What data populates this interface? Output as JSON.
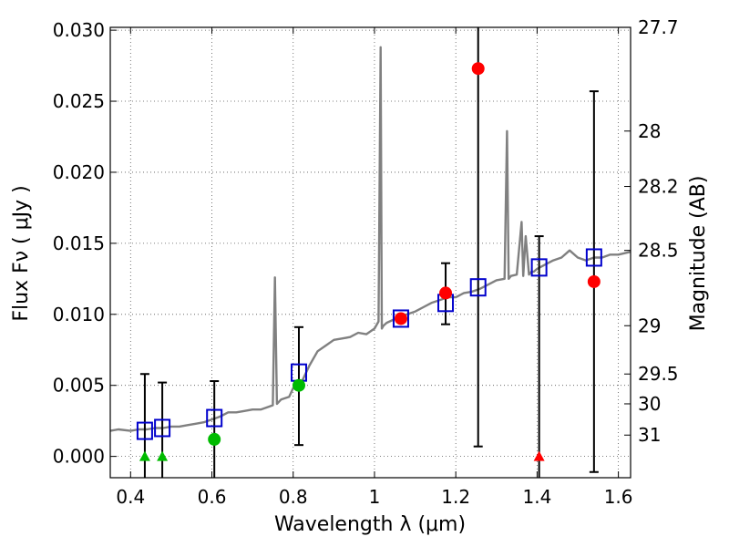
{
  "chart_data": {
    "type": "scatter",
    "xlabel": "Wavelength  λ (μm)",
    "ylabel": "Flux  Fν  ( μJy )",
    "y2label": "Magnitude (AB)",
    "xlim": [
      0.35,
      1.63
    ],
    "ylim": [
      -0.0015,
      0.0302
    ],
    "xticks": [
      {
        "value": 0.4,
        "label": "0.4"
      },
      {
        "value": 0.6,
        "label": "0.6"
      },
      {
        "value": 0.8,
        "label": "0.8"
      },
      {
        "value": 1.0,
        "label": "1"
      },
      {
        "value": 1.2,
        "label": "1.2"
      },
      {
        "value": 1.4,
        "label": "1.4"
      },
      {
        "value": 1.6,
        "label": "1.6"
      }
    ],
    "yticks": [
      {
        "value": 0.0,
        "label": "0.000"
      },
      {
        "value": 0.005,
        "label": "0.005"
      },
      {
        "value": 0.01,
        "label": "0.010"
      },
      {
        "value": 0.015,
        "label": "0.015"
      },
      {
        "value": 0.02,
        "label": "0.020"
      },
      {
        "value": 0.025,
        "label": "0.025"
      },
      {
        "value": 0.03,
        "label": "0.030"
      }
    ],
    "y2ticks": [
      {
        "flux": 0.0302,
        "label": "27.7"
      },
      {
        "flux": 0.0229,
        "label": "28"
      },
      {
        "flux": 0.019,
        "label": "28.2"
      },
      {
        "flux": 0.0145,
        "label": "28.5"
      },
      {
        "flux": 0.0092,
        "label": "29"
      },
      {
        "flux": 0.0058,
        "label": "29.5"
      },
      {
        "flux": 0.0037,
        "label": "30"
      },
      {
        "flux": 0.0015,
        "label": "31"
      }
    ],
    "model_spectrum": {
      "color": "#808080",
      "x": [
        0.35,
        0.37,
        0.4,
        0.42,
        0.44,
        0.46,
        0.48,
        0.5,
        0.52,
        0.54,
        0.56,
        0.58,
        0.6,
        0.62,
        0.64,
        0.66,
        0.68,
        0.7,
        0.72,
        0.74,
        0.75,
        0.755,
        0.76,
        0.77,
        0.79,
        0.8,
        0.81,
        0.82,
        0.84,
        0.86,
        0.88,
        0.9,
        0.92,
        0.94,
        0.96,
        0.98,
        1.0,
        1.01,
        1.015,
        1.018,
        1.022,
        1.03,
        1.06,
        1.08,
        1.1,
        1.12,
        1.14,
        1.16,
        1.18,
        1.2,
        1.22,
        1.24,
        1.26,
        1.28,
        1.3,
        1.32,
        1.326,
        1.33,
        1.336,
        1.35,
        1.362,
        1.366,
        1.372,
        1.38,
        1.386,
        1.392,
        1.4,
        1.42,
        1.44,
        1.46,
        1.48,
        1.5,
        1.52,
        1.54,
        1.56,
        1.58,
        1.6,
        1.63
      ],
      "y": [
        0.0018,
        0.0019,
        0.0018,
        0.0019,
        0.0019,
        0.002,
        0.002,
        0.0021,
        0.0021,
        0.0022,
        0.0023,
        0.0024,
        0.0026,
        0.0028,
        0.0031,
        0.0031,
        0.0032,
        0.0033,
        0.0033,
        0.0035,
        0.0036,
        0.0126,
        0.0037,
        0.004,
        0.0042,
        0.0048,
        0.005,
        0.0052,
        0.0064,
        0.0074,
        0.0078,
        0.0082,
        0.0083,
        0.0084,
        0.0087,
        0.0086,
        0.009,
        0.0095,
        0.0288,
        0.009,
        0.0092,
        0.0094,
        0.0098,
        0.01,
        0.0102,
        0.0105,
        0.0108,
        0.011,
        0.0112,
        0.0112,
        0.0115,
        0.0116,
        0.0118,
        0.0121,
        0.0124,
        0.0125,
        0.0229,
        0.0125,
        0.0127,
        0.0128,
        0.0165,
        0.0127,
        0.0155,
        0.0128,
        0.013,
        0.013,
        0.0132,
        0.0135,
        0.0138,
        0.014,
        0.0145,
        0.014,
        0.0138,
        0.014,
        0.014,
        0.0142,
        0.0142,
        0.0144
      ]
    },
    "model_photometry": {
      "name": "Model (open squares)",
      "color": "#0000cc",
      "x": [
        0.435,
        0.478,
        0.606,
        0.814,
        1.065,
        1.175,
        1.255,
        1.405,
        1.54
      ],
      "y": [
        0.0018,
        0.002,
        0.0027,
        0.0059,
        0.0097,
        0.0108,
        0.0119,
        0.0133,
        0.014
      ]
    },
    "observed_errorbars": {
      "color": "#000000",
      "points": [
        {
          "x": 0.435,
          "y": 0.0018,
          "lo": -0.0015,
          "hi": 0.0058
        },
        {
          "x": 0.478,
          "y": 0.002,
          "lo": -0.0015,
          "hi": 0.0052
        },
        {
          "x": 0.606,
          "y": 0.0012,
          "lo": -0.0015,
          "hi": 0.0053
        },
        {
          "x": 0.814,
          "y": 0.005,
          "lo": 0.0008,
          "hi": 0.0091
        },
        {
          "x": 1.175,
          "y": 0.0115,
          "lo": 0.0093,
          "hi": 0.0136
        },
        {
          "x": 1.255,
          "y": 0.0273,
          "lo": 0.0007,
          "hi": 0.0302
        },
        {
          "x": 1.405,
          "y": 0.0,
          "lo": -0.0015,
          "hi": 0.0155
        },
        {
          "x": 1.54,
          "y": 0.0123,
          "lo": -0.0011,
          "hi": 0.0257
        }
      ]
    },
    "observed_points": [
      {
        "x": 0.435,
        "y": 0.0,
        "marker": "triangle",
        "color": "#00bb00"
      },
      {
        "x": 0.478,
        "y": 0.0,
        "marker": "triangle",
        "color": "#00bb00"
      },
      {
        "x": 0.606,
        "y": 0.0012,
        "marker": "circle",
        "color": "#00bb00"
      },
      {
        "x": 0.814,
        "y": 0.005,
        "marker": "circle",
        "color": "#00bb00"
      },
      {
        "x": 1.065,
        "y": 0.0097,
        "marker": "circle",
        "color": "#ff0000"
      },
      {
        "x": 1.175,
        "y": 0.0115,
        "marker": "circle",
        "color": "#ff0000"
      },
      {
        "x": 1.255,
        "y": 0.0273,
        "marker": "circle",
        "color": "#ff0000"
      },
      {
        "x": 1.405,
        "y": 0.0,
        "marker": "triangle",
        "color": "#ff0000"
      },
      {
        "x": 1.54,
        "y": 0.0123,
        "marker": "circle",
        "color": "#ff0000"
      }
    ]
  }
}
